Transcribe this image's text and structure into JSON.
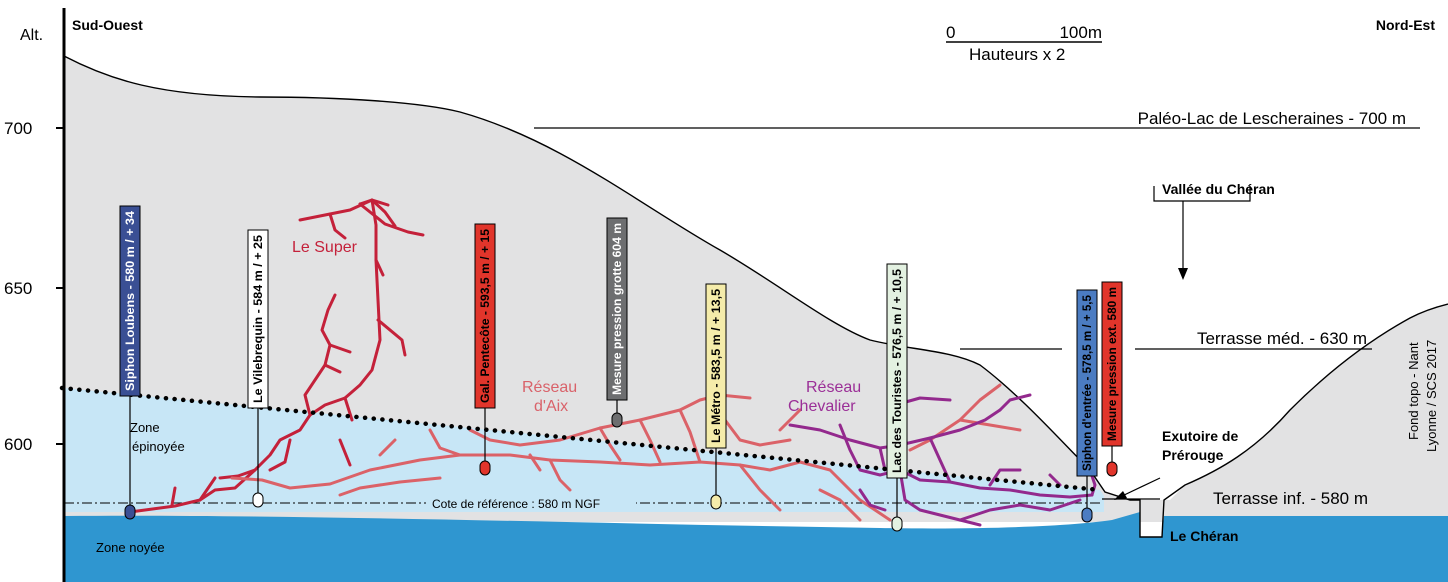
{
  "axis": {
    "title": "Alt.",
    "ticks": [
      "700",
      "650",
      "600"
    ]
  },
  "header": {
    "left": "Sud-Ouest",
    "right": "Nord-Est"
  },
  "scale": {
    "zero": "0",
    "end": "100m",
    "note": "Hauteurs x 2"
  },
  "levels": {
    "paleo": "Paléo-Lac de Lescheraines - 700 m",
    "terrasse_med": "Terrasse méd. - 630 m",
    "terrasse_inf": "Terrasse inf. - 580 m"
  },
  "places": {
    "vallee": "Vallée du Chéran",
    "exutoire_line1": "Exutoire de",
    "exutoire_line2": "Prérouge",
    "cheran": "Le Chéran",
    "zone_ep_1": "Zone",
    "zone_ep_2": "épinoyée",
    "zone_noyee": "Zone noyée",
    "reference": "Cote de référence : 580 m NGF",
    "credit_1": "Fond topo - Nant",
    "credit_2": "Lyonne / SCS 2017"
  },
  "networks": {
    "super": "Le Super",
    "aix_1": "Réseau",
    "aix_2": "d'Aix",
    "chev_1": "Réseau",
    "chev_2": "Chevalier"
  },
  "gauges": [
    {
      "label": "Siphon Loubens - 580 m / + 34",
      "color": "#3a4f94",
      "text_color": "#ffffff"
    },
    {
      "label": "Le Vilebrequin - 584 m / + 25",
      "color": "#ffffff",
      "text_color": "#000000"
    },
    {
      "label": "Gal. Pentecôte - 593,5 m / + 15",
      "color": "#e1352b",
      "text_color": "#000000"
    },
    {
      "label": "Mesure pression grotte 604 m",
      "color": "#6d6e70",
      "text_color": "#ffffff"
    },
    {
      "label": "Le Métro - 583,5 m / + 13,5",
      "color": "#f5ecaa",
      "text_color": "#000000"
    },
    {
      "label": "Lac des Touristes - 576,5 m / + 10,5",
      "color": "#e3f1e1",
      "text_color": "#000000"
    },
    {
      "label": "Siphon d'entrée - 578,5 m / + 5,5",
      "color": "#4b7cc2",
      "text_color": "#000000"
    },
    {
      "label": "Mesure pression ext. 580 m",
      "color": "#e1352b",
      "text_color": "#000000"
    }
  ],
  "colors": {
    "rock": "#e2e2e3",
    "epinoyee": "#c7e6f6",
    "noyee": "#2f96d0",
    "super": "#c4213a",
    "aix": "#db6268",
    "chevalier": "#93298d",
    "chevalier_text": "#9b2f97",
    "aix_text": "#d9626a"
  }
}
